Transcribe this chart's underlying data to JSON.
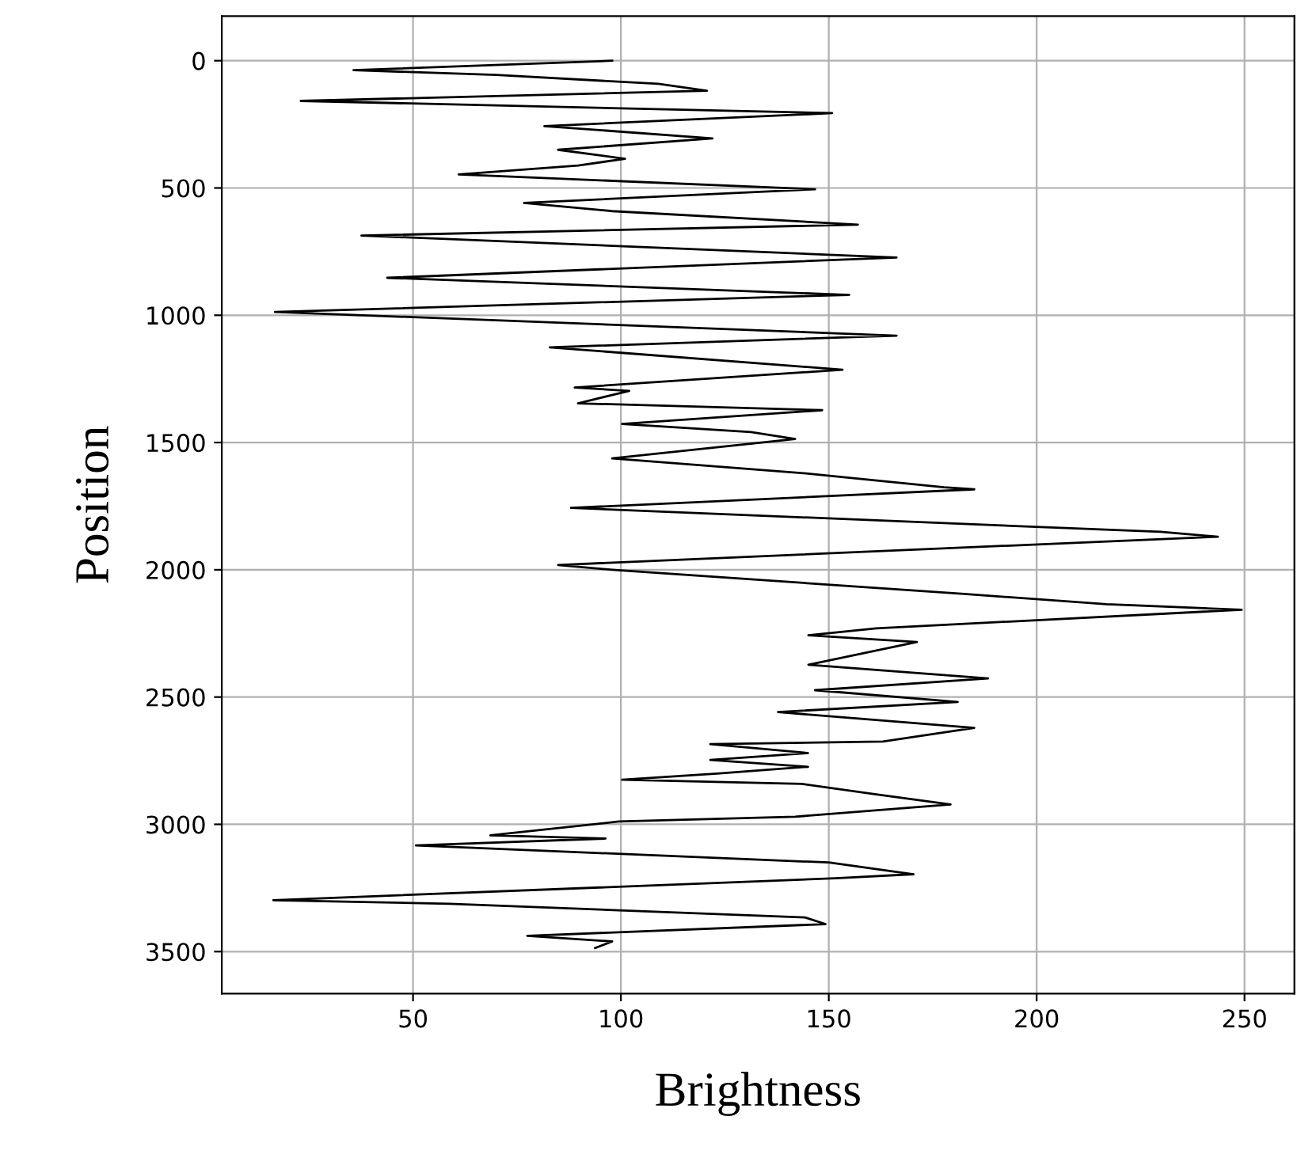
{
  "chart_data": {
    "type": "line",
    "xlabel": "Brightness",
    "ylabel": "Position",
    "xlim": [
      4,
      262
    ],
    "ylim": [
      3665,
      -175
    ],
    "xticks": [
      50,
      100,
      150,
      200,
      250
    ],
    "yticks": [
      0,
      500,
      1000,
      1500,
      2000,
      2500,
      3000,
      3500
    ],
    "grid": true,
    "marker": "none",
    "line_style": "solid",
    "series": [
      {
        "color": "#000000",
        "x": [
          97.9,
          35.7,
          70,
          109,
          120.7,
          23,
          150.8,
          81.6,
          122,
          84.9,
          101,
          89.7,
          61,
          146.7,
          76.7,
          97.9,
          157,
          37.6,
          166.3,
          43.8,
          154.9,
          16.8,
          166.3,
          82.9,
          153.3,
          88.9,
          102,
          89.7,
          148.4,
          100.3,
          131.3,
          141.9,
          97.9,
          145,
          177.7,
          185,
          88,
          229.8,
          243.6,
          84.9,
          97.9,
          182.6,
          216.8,
          249.3,
          161.4,
          145.1,
          171.2,
          145.1,
          188.3,
          146.7,
          181,
          137.8,
          185,
          163,
          121.5,
          145,
          121.5,
          145,
          123.1,
          100.3,
          143.5,
          161.4,
          179.3,
          141.9,
          99.5,
          68.6,
          96.3,
          50.7,
          150,
          170.4,
          151.6,
          16.4,
          58.8,
          144.3,
          149.2,
          77.5,
          97.9,
          93.8
        ],
        "values": [
          0,
          37,
          56,
          91,
          118,
          158,
          206,
          257,
          305,
          350,
          385,
          412,
          447,
          505,
          559,
          591,
          644,
          687,
          773,
          853,
          920,
          987,
          1080,
          1126,
          1214,
          1284,
          1297,
          1346,
          1373,
          1427,
          1459,
          1486,
          1562,
          1622,
          1676,
          1684,
          1757,
          1851,
          1870,
          1981,
          2000,
          2095,
          2135,
          2157,
          2230,
          2257,
          2284,
          2373,
          2427,
          2473,
          2519,
          2559,
          2621,
          2675,
          2685,
          2720,
          2747,
          2774,
          2801,
          2825,
          2841,
          2882,
          2922,
          2970,
          2989,
          3043,
          3056,
          3083,
          3150,
          3196,
          3212,
          3298,
          3312,
          3366,
          3392,
          3438,
          3460,
          3486
        ]
      }
    ]
  }
}
